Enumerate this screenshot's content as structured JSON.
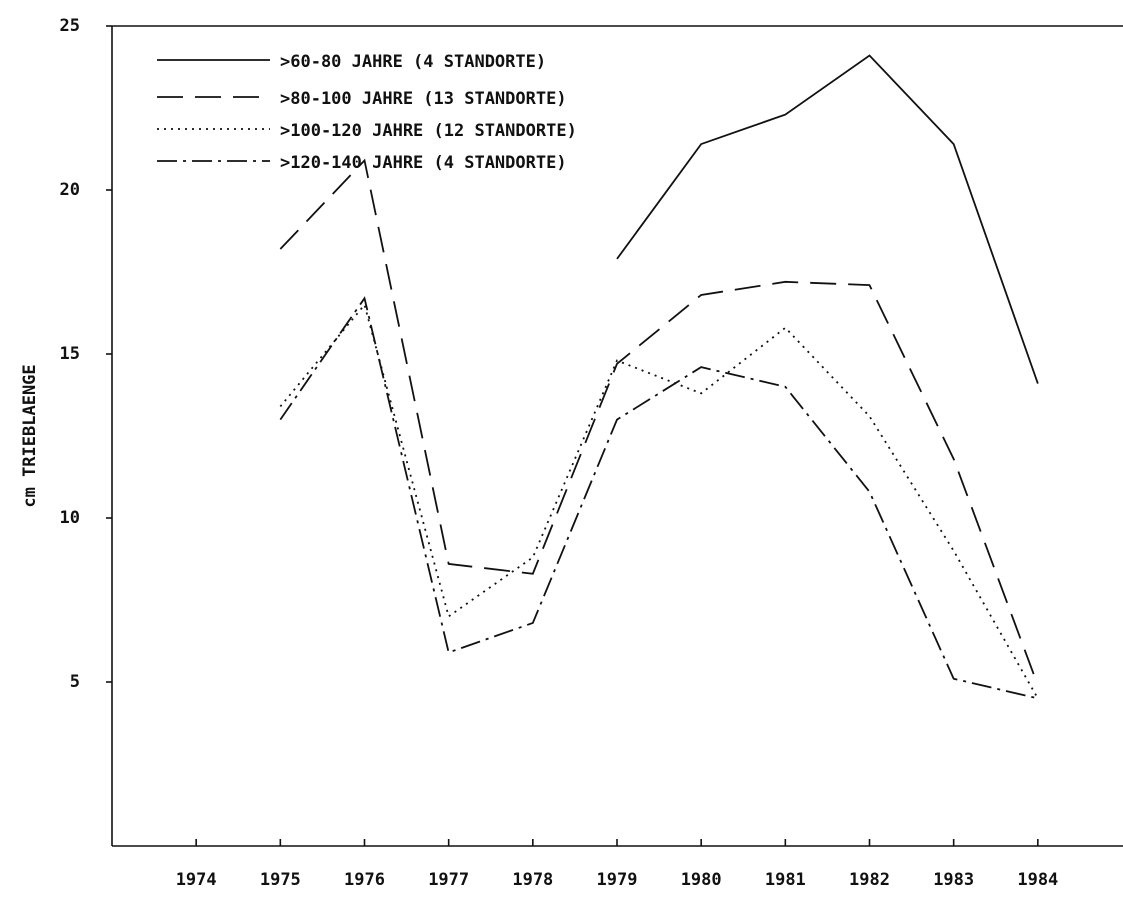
{
  "chart_data": {
    "type": "line",
    "y_label": "cm TRIEBLAENGE",
    "x": [
      1975,
      1976,
      1977,
      1978,
      1979,
      1980,
      1981,
      1982,
      1983,
      1984
    ],
    "xlim": [
      1973,
      1985
    ],
    "xticks": [
      1974,
      1975,
      1976,
      1977,
      1978,
      1979,
      1980,
      1981,
      1982,
      1983,
      1984
    ],
    "ylim": [
      0,
      25
    ],
    "yticks": [
      5,
      10,
      15,
      20,
      25
    ],
    "legend": "upper-left",
    "series": [
      {
        "name": ">60-80 JAHRE (4 STANDORTE)",
        "color": "#111111",
        "dash": "solid",
        "values": [
          null,
          null,
          null,
          null,
          17.9,
          21.4,
          22.3,
          24.1,
          21.4,
          14.1
        ]
      },
      {
        "name": ">80-100 JAHRE (13 STANDORTE)",
        "color": "#111111",
        "dash": "dashed",
        "values": [
          18.2,
          20.9,
          8.6,
          8.3,
          14.7,
          16.8,
          17.2,
          17.1,
          11.8,
          4.9
        ]
      },
      {
        "name": ">100-120 JAHRE (12 STANDORTE)",
        "color": "#111111",
        "dash": "dotted",
        "values": [
          13.4,
          16.5,
          7.0,
          8.8,
          14.8,
          13.8,
          15.8,
          13.1,
          9.0,
          4.5
        ]
      },
      {
        "name": ">120-140 JAHRE (4 STANDORTE)",
        "color": "#111111",
        "dash": "dashdot",
        "values": [
          13.0,
          16.7,
          5.9,
          6.8,
          13.0,
          14.6,
          14.0,
          10.8,
          5.1,
          4.5
        ]
      }
    ]
  }
}
